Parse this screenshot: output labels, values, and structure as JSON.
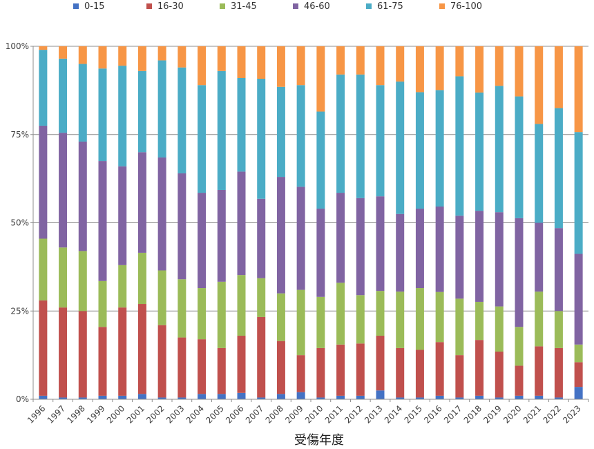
{
  "chart_data": {
    "type": "bar",
    "stacked": true,
    "percent_stacked": true,
    "title": "",
    "xlabel": "受傷年度",
    "ylabel": "",
    "ylim": [
      0,
      100
    ],
    "yticks": [
      "0%",
      "25%",
      "50%",
      "75%",
      "100%"
    ],
    "grid": true,
    "legend_position": "top",
    "categories": [
      "1996",
      "1997",
      "1998",
      "1999",
      "2000",
      "2001",
      "2002",
      "2003",
      "2004",
      "2005",
      "2006",
      "2007",
      "2008",
      "2009",
      "2010",
      "2011",
      "2012",
      "2013",
      "2014",
      "2015",
      "2016",
      "2017",
      "2018",
      "2019",
      "2020",
      "2021",
      "2022",
      "2023"
    ],
    "series": [
      {
        "name": "0-15",
        "color": "#4472C4",
        "values": [
          1,
          0.5,
          0.5,
          1,
          1,
          1.5,
          0.5,
          0.5,
          1.5,
          1.5,
          1.8,
          0.5,
          1.5,
          2,
          0.5,
          1,
          1,
          2.5,
          0.5,
          0.5,
          1,
          0.5,
          1,
          0.5,
          1,
          1,
          0.5,
          3.5
        ]
      },
      {
        "name": "16-30",
        "color": "#C0504D",
        "values": [
          27,
          25.5,
          24.5,
          19.5,
          25,
          25.5,
          20.5,
          17,
          15.5,
          13,
          16.2,
          22.8,
          15,
          10.5,
          14,
          14.5,
          14.8,
          15.5,
          14,
          13.5,
          15.2,
          12,
          15.8,
          13,
          8.5,
          14,
          14,
          7
        ]
      },
      {
        "name": "31-45",
        "color": "#9BBB59",
        "values": [
          17.5,
          17,
          17,
          13,
          12,
          14.5,
          15.5,
          16.5,
          14.5,
          18.8,
          17.2,
          11,
          13.5,
          18.5,
          14.5,
          17.5,
          13.7,
          12.7,
          16,
          17.5,
          14.2,
          16,
          10.8,
          12.8,
          11,
          15.5,
          10.5,
          5
        ]
      },
      {
        "name": "46-60",
        "color": "#8064A2",
        "values": [
          32,
          32.5,
          31,
          34,
          28,
          28.5,
          32,
          30,
          27,
          26,
          29.3,
          22.5,
          33,
          29.2,
          25,
          25.5,
          27.5,
          26.8,
          22,
          22.5,
          24.2,
          23.5,
          25.8,
          26.7,
          30.8,
          19.5,
          23.5,
          25.7
        ]
      },
      {
        "name": "61-75",
        "color": "#4BACC6",
        "values": [
          21.5,
          21,
          22,
          26.2,
          28.5,
          23,
          27.5,
          30,
          30.5,
          33.7,
          26.5,
          34,
          25.5,
          28.8,
          27.5,
          33.5,
          35,
          31.5,
          37.5,
          33,
          33,
          39.5,
          33.5,
          35.8,
          34.5,
          28,
          34,
          34.5
        ]
      },
      {
        "name": "76-100",
        "color": "#F79646",
        "values": [
          1,
          3.5,
          5,
          6.3,
          5.5,
          7,
          4,
          6,
          11,
          7,
          9,
          9.2,
          11.5,
          11,
          18.5,
          8,
          8,
          11,
          10,
          13,
          12.4,
          8.5,
          13.1,
          11.2,
          14.2,
          22,
          17.5,
          24.3
        ]
      }
    ]
  }
}
